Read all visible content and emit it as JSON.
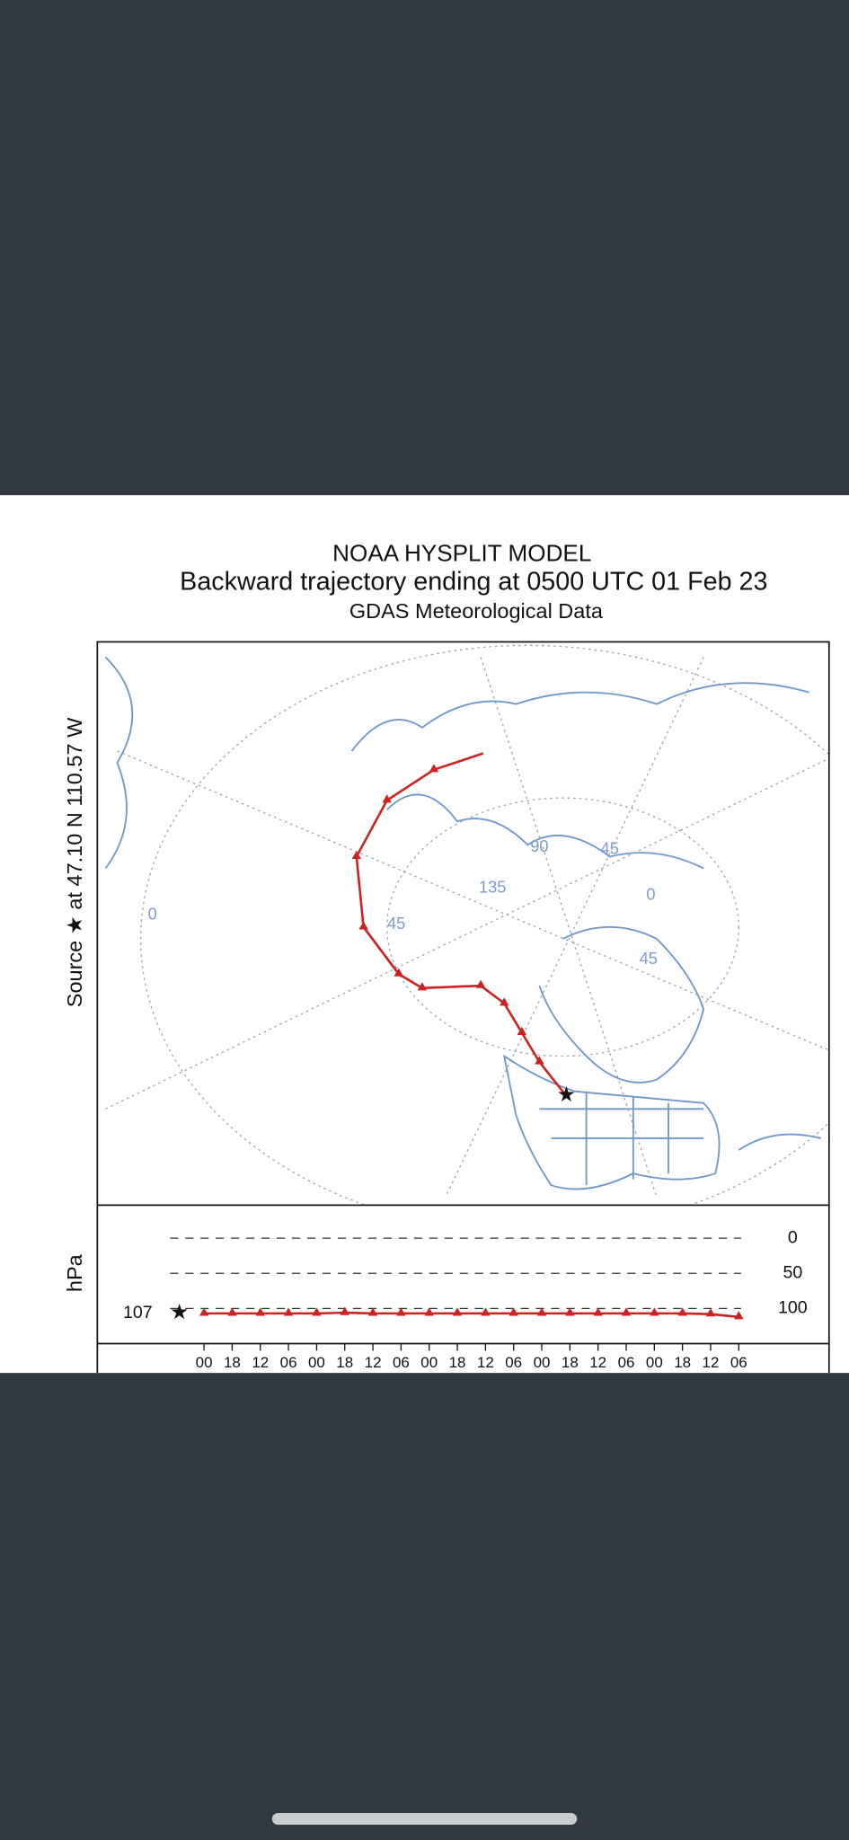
{
  "header": {
    "title": "NOAA HYSPLIT MODEL",
    "subtitle": "Backward trajectory ending at 0500 UTC 01 Feb 23",
    "data_source": "GDAS Meteorological Data"
  },
  "source_label": "Source ★ at 47.10 N 110.57 W",
  "map": {
    "grid_labels": [
      "90",
      "45",
      "135",
      "0",
      "45",
      "45",
      "0"
    ]
  },
  "pressure_chart": {
    "type": "line",
    "y_label": "hPa",
    "ylim": [
      -47,
      150
    ],
    "yticks": [
      0,
      50,
      100
    ],
    "start_value": 107,
    "categories": [
      "00",
      "18",
      "12",
      "06",
      "00",
      "18",
      "12",
      "06",
      "00",
      "18",
      "12",
      "06",
      "00",
      "18",
      "12",
      "06",
      "00",
      "18",
      "12",
      "06"
    ],
    "values": [
      107,
      107,
      107,
      107,
      107,
      106,
      107,
      107,
      107,
      107,
      107,
      107,
      107,
      107,
      107,
      107,
      107,
      107,
      108,
      112
    ],
    "color": "#cc2222"
  }
}
